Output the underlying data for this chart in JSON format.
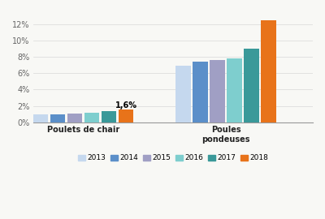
{
  "categories": [
    "Poulets de chair",
    "Poules\npondeuses"
  ],
  "years": [
    "2013",
    "2014",
    "2015",
    "2016",
    "2017",
    "2018"
  ],
  "values": {
    "Poulets de chair": [
      1.0,
      1.0,
      1.05,
      1.15,
      1.35,
      1.6
    ],
    "Poules\npondeuses": [
      6.9,
      7.4,
      7.6,
      7.8,
      9.0,
      12.5
    ]
  },
  "bar_colors": [
    "#c5d8ee",
    "#5b8fc9",
    "#a09fc4",
    "#7ecece",
    "#3a9999",
    "#e8731a"
  ],
  "annotation_text": "1,6%",
  "ylim": [
    0,
    13.5
  ],
  "yticks": [
    0,
    2,
    4,
    6,
    8,
    10,
    12
  ],
  "ytick_labels": [
    "0%",
    "2%",
    "4%",
    "6%",
    "8%",
    "10%",
    "12%"
  ],
  "legend_labels": [
    "2013",
    "2014",
    "2015",
    "2016",
    "2017",
    "2018"
  ],
  "background_color": "#f8f8f5",
  "grid_color": "#dddddd",
  "bar_width": 0.055,
  "group_centers": [
    0.22,
    0.68
  ]
}
